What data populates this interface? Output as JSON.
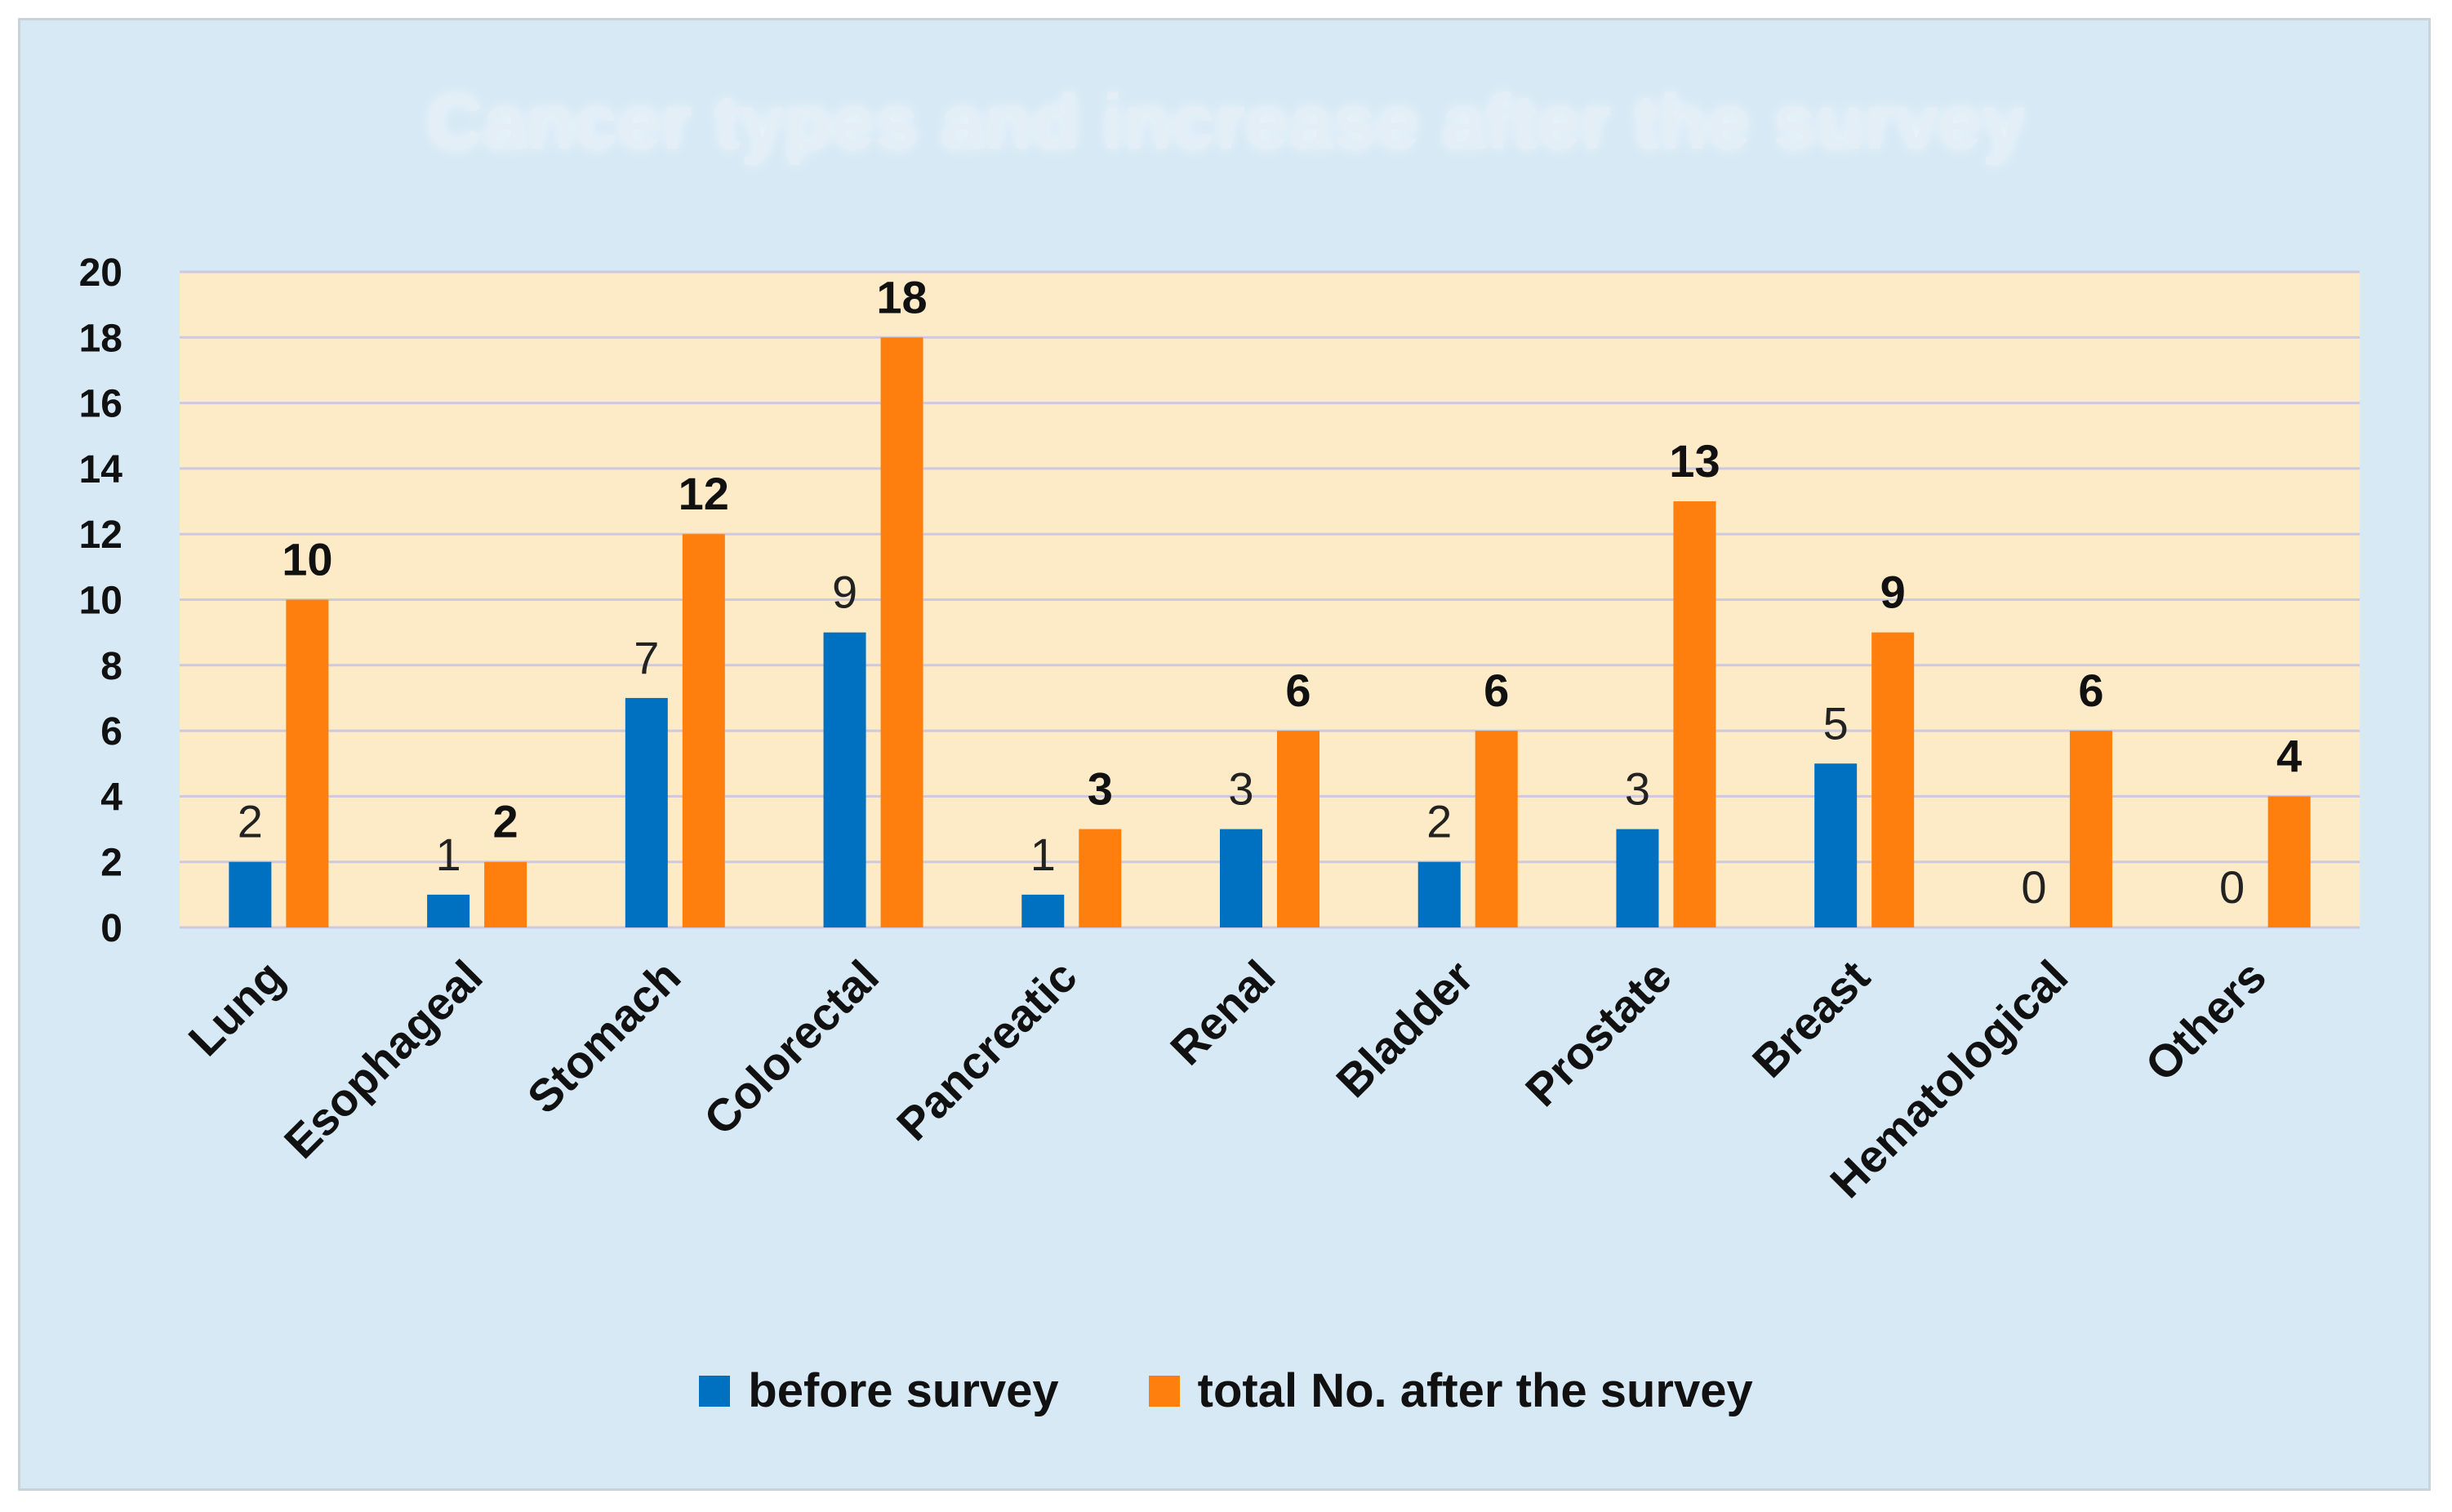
{
  "chart_data": {
    "type": "bar",
    "title": "Cancer types and increase after the survey",
    "xlabel": "",
    "ylabel": "",
    "ylim": [
      0,
      20
    ],
    "yticks": [
      0,
      2,
      4,
      6,
      8,
      10,
      12,
      14,
      16,
      18,
      20
    ],
    "grid": true,
    "legend_position": "bottom",
    "categories": [
      "Lung",
      "Esophageal",
      "Stomach",
      "Colorectal",
      "Pancreatic",
      "Renal",
      "Bladder",
      "Prostate",
      "Breast",
      "Hematological",
      "Others"
    ],
    "series": [
      {
        "name": "before survey",
        "color": "#0070c0",
        "values": [
          2,
          1,
          7,
          9,
          1,
          3,
          2,
          3,
          5,
          0,
          0
        ]
      },
      {
        "name": "total No. after the survey",
        "color": "#ff7f0e",
        "values": [
          10,
          2,
          12,
          18,
          3,
          6,
          6,
          13,
          9,
          6,
          4
        ]
      }
    ],
    "plot_background": "#fdebc7",
    "frame_background": "#d6e9f5",
    "gridline_color": "#ccc9e0"
  }
}
